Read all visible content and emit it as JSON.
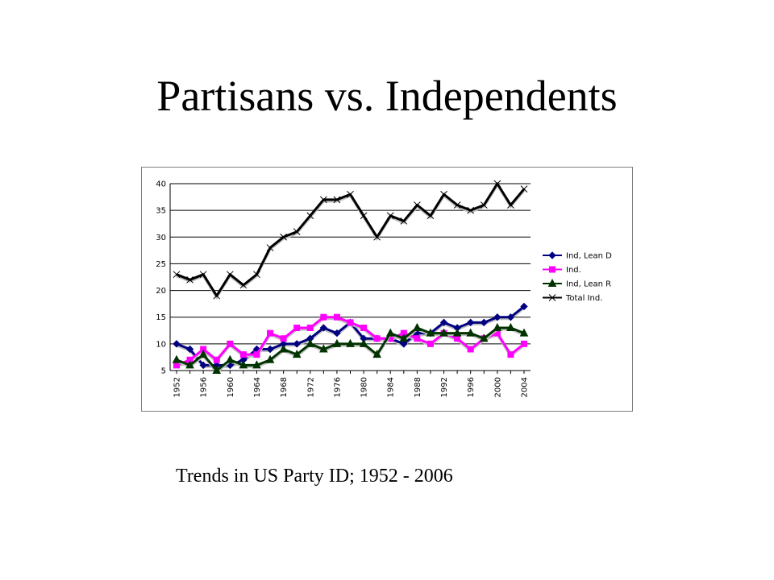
{
  "slide": {
    "title": "Partisans vs. Independents",
    "caption": "Trends in US Party ID; 1952 - 2006"
  },
  "chart_data": {
    "type": "line",
    "title": "",
    "xlabel": "",
    "ylabel": "",
    "ylim": [
      5,
      40
    ],
    "yticks": [
      5,
      10,
      15,
      20,
      25,
      30,
      35,
      40
    ],
    "x": [
      1952,
      1954,
      1956,
      1958,
      1960,
      1962,
      1964,
      1966,
      1968,
      1970,
      1972,
      1974,
      1976,
      1978,
      1980,
      1982,
      1984,
      1986,
      1988,
      1990,
      1992,
      1994,
      1996,
      1998,
      2000,
      2002,
      2004
    ],
    "xticks": [
      "1952",
      "1956",
      "1960",
      "1964",
      "1968",
      "1972",
      "1976",
      "1980",
      "1984",
      "1988",
      "1992",
      "1996",
      "2000",
      "2004"
    ],
    "grid": "horizontal",
    "legend_position": "right",
    "series": [
      {
        "name": "Ind, Lean D",
        "color": "#000080",
        "marker": "diamond",
        "values": [
          10,
          9,
          6,
          6,
          6,
          7,
          9,
          9,
          10,
          10,
          11,
          13,
          12,
          14,
          11,
          11,
          11,
          10,
          12,
          12,
          14,
          13,
          14,
          14,
          15,
          15,
          17
        ]
      },
      {
        "name": "Ind.",
        "color": "#ff00ff",
        "marker": "square",
        "values": [
          6,
          7,
          9,
          7,
          10,
          8,
          8,
          12,
          11,
          13,
          13,
          15,
          15,
          14,
          13,
          11,
          11,
          12,
          11,
          10,
          12,
          11,
          9,
          11,
          12,
          8,
          10
        ]
      },
      {
        "name": "Ind, Lean R",
        "color": "#003300",
        "marker": "triangle",
        "values": [
          7,
          6,
          8,
          5,
          7,
          6,
          6,
          7,
          9,
          8,
          10,
          9,
          10,
          10,
          10,
          8,
          12,
          11,
          13,
          12,
          12,
          12,
          12,
          11,
          13,
          13,
          12
        ]
      },
      {
        "name": "Total Ind.",
        "color": "#000000",
        "marker": "x",
        "values": [
          23,
          22,
          23,
          19,
          23,
          21,
          23,
          28,
          30,
          31,
          34,
          37,
          37,
          38,
          34,
          30,
          34,
          33,
          36,
          34,
          38,
          36,
          35,
          36,
          40,
          36,
          39
        ]
      }
    ]
  }
}
